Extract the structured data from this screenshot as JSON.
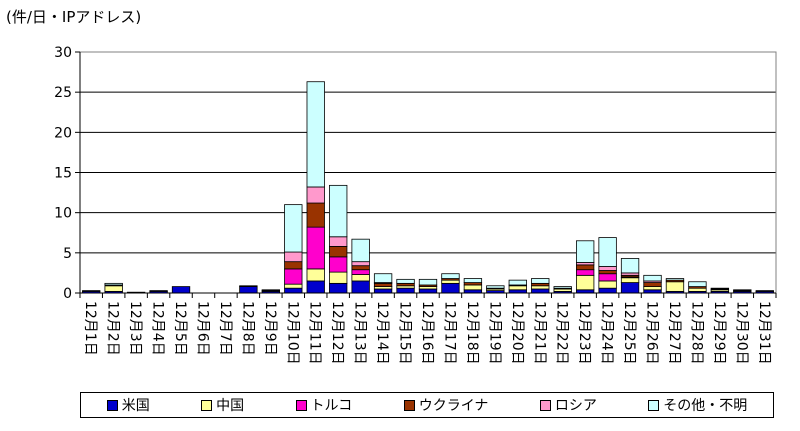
{
  "unit_label": "(件/日・IPアドレス)",
  "colors": {
    "us": "#0000cc",
    "china": "#ffff99",
    "turkey": "#ff00cc",
    "ukraine": "#993300",
    "russia": "#ff99cc",
    "other": "#ccffff"
  },
  "chart_data": {
    "type": "bar",
    "stacked": true,
    "title": "",
    "xlabel": "",
    "ylabel": "(件/日・IPアドレス)",
    "ylim": [
      0,
      30
    ],
    "yticks": [
      0,
      5,
      10,
      15,
      20,
      25,
      30
    ],
    "grid": true,
    "legend_position": "bottom",
    "categories": [
      "12月1日",
      "12月2日",
      "12月3日",
      "12月4日",
      "12月5日",
      "12月6日",
      "12月7日",
      "12月8日",
      "12月9日",
      "12月10日",
      "12月11日",
      "12月12日",
      "12月13日",
      "12月14日",
      "12月15日",
      "12月16日",
      "12月17日",
      "12月18日",
      "12月19日",
      "12月20日",
      "12月21日",
      "12月22日",
      "12月23日",
      "12月24日",
      "12月25日",
      "12月26日",
      "12月27日",
      "12月28日",
      "12月29日",
      "12月30日",
      "12月31日"
    ],
    "series": [
      {
        "name": "米国",
        "color_key": "us",
        "values": [
          0.2,
          0.2,
          0.1,
          0.2,
          0.8,
          0,
          0,
          0.8,
          0.2,
          0.6,
          1.5,
          1.2,
          1.5,
          0.5,
          0.6,
          0.5,
          1.2,
          0.4,
          0.3,
          0.4,
          0.5,
          0.2,
          0.4,
          0.6,
          1.3,
          0.4,
          0.2,
          0.2,
          0.2,
          0.2,
          0.2
        ]
      },
      {
        "name": "中国",
        "color_key": "china",
        "values": [
          0,
          0.7,
          0,
          0,
          0,
          0,
          0,
          0,
          0.1,
          0.5,
          1.5,
          1.4,
          0.8,
          0.3,
          0.3,
          0.3,
          0.4,
          0.6,
          0.2,
          0.5,
          0.4,
          0.3,
          1.8,
          0.9,
          0.6,
          0.4,
          1.2,
          0.4,
          0.2,
          0.1,
          0
        ]
      },
      {
        "name": "トルコ",
        "color_key": "turkey",
        "values": [
          0,
          0,
          0,
          0,
          0,
          0,
          0,
          0,
          0,
          1.9,
          5.2,
          1.9,
          0.6,
          0,
          0,
          0,
          0,
          0,
          0,
          0,
          0,
          0,
          0.7,
          0.9,
          0.1,
          0,
          0,
          0,
          0,
          0,
          0
        ]
      },
      {
        "name": "ウクライナ",
        "color_key": "ukraine",
        "values": [
          0.1,
          0.1,
          0,
          0.1,
          0,
          0,
          0,
          0.1,
          0.1,
          0.9,
          3.0,
          1.3,
          0.5,
          0.4,
          0.3,
          0.2,
          0.2,
          0.3,
          0.1,
          0.1,
          0.3,
          0.1,
          0.6,
          0.4,
          0.2,
          0.5,
          0.2,
          0.2,
          0.1,
          0.1,
          0.1
        ]
      },
      {
        "name": "ロシア",
        "color_key": "russia",
        "values": [
          0,
          0,
          0,
          0,
          0,
          0,
          0,
          0,
          0,
          1.2,
          2.0,
          1.2,
          0.5,
          0.1,
          0,
          0,
          0,
          0,
          0,
          0,
          0,
          0,
          0.3,
          0.5,
          0.3,
          0.2,
          0,
          0,
          0,
          0,
          0
        ]
      },
      {
        "name": "その他・不明",
        "color_key": "other",
        "values": [
          0,
          0.2,
          0,
          0,
          0,
          0,
          0,
          0,
          0,
          5.9,
          13.1,
          6.4,
          2.8,
          1.1,
          0.5,
          0.7,
          0.6,
          0.5,
          0.3,
          0.6,
          0.6,
          0.2,
          2.7,
          3.6,
          1.8,
          0.7,
          0.2,
          0.6,
          0.1,
          0,
          0
        ]
      }
    ]
  }
}
